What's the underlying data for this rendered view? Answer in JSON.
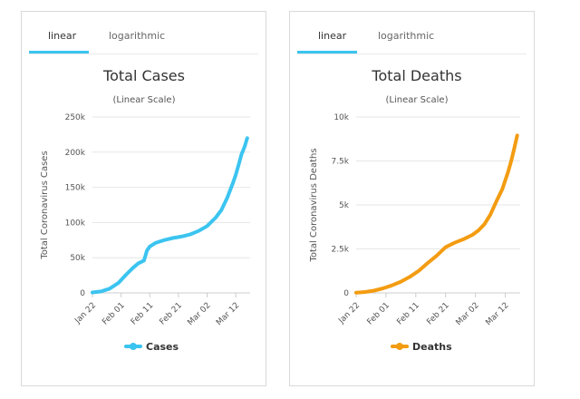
{
  "tabs": {
    "linear": "linear",
    "logarithmic": "logarithmic"
  },
  "chart_data": [
    {
      "type": "line",
      "title": "Total Cases",
      "subtitle": "(Linear Scale)",
      "ylabel": "Total Coronavirus Cases",
      "xlabel": "",
      "ylim": [
        0,
        250000
      ],
      "y_ticks": [
        0,
        50000,
        100000,
        150000,
        200000,
        250000
      ],
      "y_tick_labels": [
        "0",
        "50k",
        "100k",
        "150k",
        "200k",
        "250k"
      ],
      "x_ticks": [
        "Jan 22",
        "Feb 01",
        "Feb 11",
        "Feb 21",
        "Mar 02",
        "Mar 12"
      ],
      "x_tick_day_index": [
        0,
        10,
        20,
        30,
        40,
        50
      ],
      "x_day_count": 55,
      "color": "#3bc4f0",
      "series": [
        {
          "name": "Cases",
          "x": [
            0,
            3,
            6,
            9,
            12,
            14,
            16,
            18,
            19,
            20,
            22,
            25,
            28,
            31,
            34,
            37,
            40,
            43,
            45,
            47,
            49,
            50,
            51,
            52,
            53,
            54
          ],
          "values": [
            580,
            2000,
            6000,
            14000,
            27000,
            35000,
            42000,
            46000,
            60000,
            66000,
            71000,
            75000,
            78000,
            80000,
            83000,
            88000,
            95000,
            107000,
            118000,
            135000,
            156000,
            168000,
            182000,
            197000,
            207000,
            220000
          ]
        }
      ],
      "legend": "bottom-center"
    },
    {
      "type": "line",
      "title": "Total Deaths",
      "subtitle": "(Linear Scale)",
      "ylabel": "Total Coronavirus Deaths",
      "xlabel": "",
      "ylim": [
        0,
        10000
      ],
      "y_ticks": [
        0,
        2500,
        5000,
        7500,
        10000
      ],
      "y_tick_labels": [
        "0",
        "2.5k",
        "5k",
        "7.5k",
        "10k"
      ],
      "x_ticks": [
        "Jan 22",
        "Feb 01",
        "Feb 11",
        "Feb 21",
        "Mar 02",
        "Mar 12"
      ],
      "x_tick_day_index": [
        0,
        10,
        20,
        30,
        40,
        50
      ],
      "x_day_count": 55,
      "color": "#f39c12",
      "series": [
        {
          "name": "Deaths",
          "x": [
            0,
            3,
            6,
            9,
            12,
            15,
            18,
            21,
            24,
            27,
            30,
            33,
            36,
            39,
            41,
            43,
            45,
            47,
            49,
            51,
            52,
            53,
            54
          ],
          "values": [
            17,
            50,
            130,
            260,
            430,
            640,
            910,
            1260,
            1700,
            2120,
            2600,
            2850,
            3050,
            3300,
            3550,
            3900,
            4450,
            5200,
            5900,
            6900,
            7500,
            8200,
            8950
          ]
        }
      ],
      "legend": "bottom-center"
    }
  ]
}
